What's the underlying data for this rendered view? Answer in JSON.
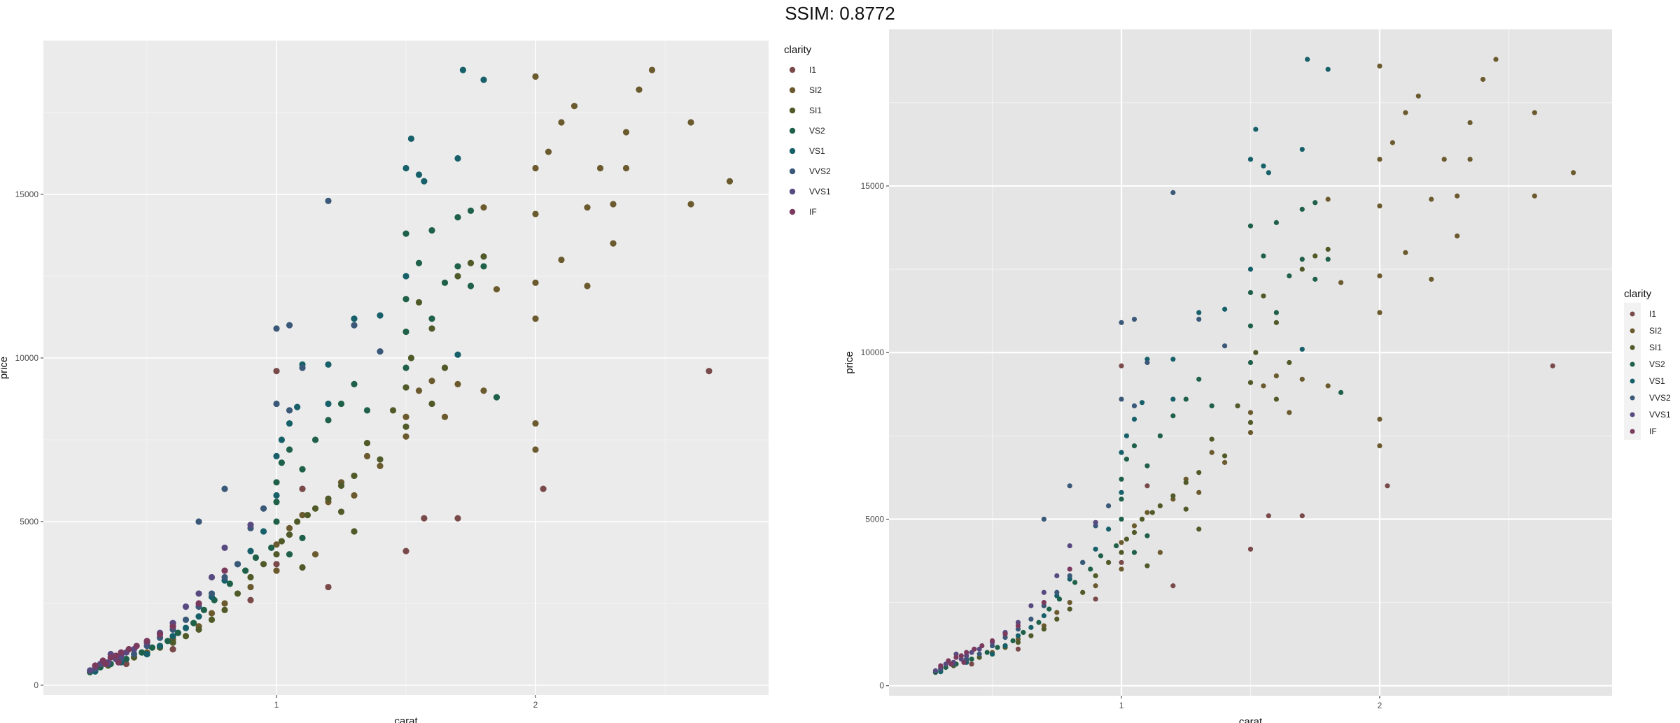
{
  "page_title": "SSIM: 0.8772",
  "palette": {
    "I1": "#7a4a4a",
    "SI2": "#6b5a2e",
    "SI1": "#4f5a28",
    "VS2": "#1f6048",
    "VS1": "#17606a",
    "VVS2": "#3a5878",
    "VVS1": "#584a80",
    "IF": "#7a3a5e"
  },
  "chart_data": [
    {
      "type": "scatter",
      "title": "",
      "xlabel": "carat",
      "ylabel": "price",
      "xlim": [
        0.1,
        2.9
      ],
      "ylim": [
        -300,
        19700
      ],
      "x_ticks": [
        1,
        2
      ],
      "x_tick_labels": [
        "1",
        "2"
      ],
      "y_ticks": [
        0,
        5000,
        10000,
        15000
      ],
      "y_tick_labels": [
        "0",
        "5000",
        "10000",
        "15000"
      ],
      "grid": true,
      "legend": {
        "title": "clarity",
        "placement": "right-top",
        "entries": [
          "I1",
          "SI2",
          "SI1",
          "VS2",
          "VS1",
          "VVS2",
          "VVS1",
          "IF"
        ]
      },
      "series": [
        {
          "name": "I1",
          "points": [
            [
              0.42,
              650
            ],
            [
              0.6,
              1100
            ],
            [
              0.9,
              2600
            ],
            [
              1.0,
              3700
            ],
            [
              1.0,
              9600
            ],
            [
              1.2,
              3000
            ],
            [
              1.5,
              4100
            ],
            [
              1.57,
              5100
            ],
            [
              1.7,
              5100
            ],
            [
              2.03,
              6000
            ],
            [
              2.67,
              9600
            ],
            [
              1.1,
              6000
            ]
          ]
        },
        {
          "name": "SI2",
          "points": [
            [
              0.3,
              500
            ],
            [
              0.35,
              700
            ],
            [
              0.4,
              800
            ],
            [
              0.5,
              1000
            ],
            [
              0.55,
              1200
            ],
            [
              0.6,
              1400
            ],
            [
              0.7,
              1800
            ],
            [
              0.75,
              2200
            ],
            [
              0.8,
              2500
            ],
            [
              0.9,
              3000
            ],
            [
              1.0,
              3500
            ],
            [
              1.0,
              4300
            ],
            [
              1.05,
              4800
            ],
            [
              1.1,
              5200
            ],
            [
              1.15,
              4000
            ],
            [
              1.2,
              5600
            ],
            [
              1.25,
              6200
            ],
            [
              1.3,
              5800
            ],
            [
              1.35,
              7000
            ],
            [
              1.4,
              6700
            ],
            [
              1.5,
              7600
            ],
            [
              1.5,
              8200
            ],
            [
              1.55,
              9000
            ],
            [
              1.6,
              9300
            ],
            [
              1.65,
              8200
            ],
            [
              1.7,
              9200
            ],
            [
              1.8,
              9000
            ],
            [
              1.8,
              14600
            ],
            [
              2.0,
              12300
            ],
            [
              2.0,
              14400
            ],
            [
              2.0,
              15800
            ],
            [
              2.0,
              18600
            ],
            [
              2.05,
              16300
            ],
            [
              2.1,
              13000
            ],
            [
              2.1,
              17200
            ],
            [
              2.15,
              17700
            ],
            [
              2.2,
              14600
            ],
            [
              2.25,
              15800
            ],
            [
              2.3,
              13500
            ],
            [
              2.3,
              14700
            ],
            [
              2.35,
              15800
            ],
            [
              2.35,
              16900
            ],
            [
              2.4,
              18200
            ],
            [
              2.45,
              18800
            ],
            [
              2.6,
              14700
            ],
            [
              2.6,
              17200
            ],
            [
              2.75,
              15400
            ],
            [
              2.0,
              8000
            ],
            [
              2.0,
              7200
            ],
            [
              1.85,
              12100
            ],
            [
              2.2,
              12200
            ],
            [
              2.0,
              11200
            ]
          ]
        },
        {
          "name": "SI1",
          "points": [
            [
              0.3,
              450
            ],
            [
              0.35,
              600
            ],
            [
              0.4,
              750
            ],
            [
              0.45,
              850
            ],
            [
              0.5,
              950
            ],
            [
              0.55,
              1150
            ],
            [
              0.6,
              1300
            ],
            [
              0.65,
              1500
            ],
            [
              0.7,
              1700
            ],
            [
              0.75,
              2000
            ],
            [
              0.8,
              2300
            ],
            [
              0.85,
              2800
            ],
            [
              0.9,
              3300
            ],
            [
              0.95,
              3700
            ],
            [
              1.0,
              4000
            ],
            [
              1.02,
              4400
            ],
            [
              1.05,
              4600
            ],
            [
              1.08,
              5000
            ],
            [
              1.12,
              5200
            ],
            [
              1.15,
              5400
            ],
            [
              1.2,
              5700
            ],
            [
              1.25,
              6100
            ],
            [
              1.3,
              6400
            ],
            [
              1.35,
              7400
            ],
            [
              1.4,
              6900
            ],
            [
              1.45,
              8400
            ],
            [
              1.5,
              9100
            ],
            [
              1.52,
              10000
            ],
            [
              1.55,
              11700
            ],
            [
              1.6,
              10900
            ],
            [
              1.65,
              9700
            ],
            [
              1.7,
              12500
            ],
            [
              1.75,
              12900
            ],
            [
              1.8,
              13100
            ],
            [
              1.1,
              3600
            ],
            [
              1.3,
              4700
            ],
            [
              1.5,
              7900
            ],
            [
              1.6,
              8600
            ],
            [
              1.25,
              5300
            ]
          ]
        },
        {
          "name": "VS2",
          "points": [
            [
              0.28,
              400
            ],
            [
              0.32,
              550
            ],
            [
              0.36,
              650
            ],
            [
              0.42,
              800
            ],
            [
              0.48,
              1000
            ],
            [
              0.52,
              1150
            ],
            [
              0.58,
              1350
            ],
            [
              0.62,
              1600
            ],
            [
              0.68,
              1900
            ],
            [
              0.72,
              2300
            ],
            [
              0.76,
              2600
            ],
            [
              0.82,
              3100
            ],
            [
              0.88,
              3500
            ],
            [
              0.92,
              3900
            ],
            [
              0.98,
              4200
            ],
            [
              1.0,
              5000
            ],
            [
              1.0,
              5600
            ],
            [
              1.0,
              6200
            ],
            [
              1.02,
              6800
            ],
            [
              1.05,
              7200
            ],
            [
              1.1,
              6600
            ],
            [
              1.15,
              7500
            ],
            [
              1.2,
              8100
            ],
            [
              1.25,
              8600
            ],
            [
              1.3,
              9200
            ],
            [
              1.35,
              8400
            ],
            [
              1.5,
              9700
            ],
            [
              1.5,
              10800
            ],
            [
              1.5,
              11800
            ],
            [
              1.55,
              12900
            ],
            [
              1.6,
              11200
            ],
            [
              1.65,
              12300
            ],
            [
              1.7,
              12800
            ],
            [
              1.75,
              12200
            ],
            [
              1.8,
              12800
            ],
            [
              1.5,
              13800
            ],
            [
              1.6,
              13900
            ],
            [
              1.7,
              14300
            ],
            [
              1.75,
              14500
            ],
            [
              1.85,
              8800
            ],
            [
              1.1,
              4500
            ],
            [
              1.05,
              4000
            ]
          ]
        },
        {
          "name": "VS1",
          "points": [
            [
              0.3,
              420
            ],
            [
              0.4,
              700
            ],
            [
              0.5,
              950
            ],
            [
              0.55,
              1200
            ],
            [
              0.6,
              1500
            ],
            [
              0.65,
              1750
            ],
            [
              0.7,
              2100
            ],
            [
              0.75,
              2700
            ],
            [
              0.8,
              3200
            ],
            [
              0.85,
              3700
            ],
            [
              0.9,
              4100
            ],
            [
              0.95,
              4700
            ],
            [
              1.0,
              5800
            ],
            [
              1.0,
              7000
            ],
            [
              1.02,
              7500
            ],
            [
              1.05,
              8000
            ],
            [
              1.08,
              8500
            ],
            [
              1.1,
              9800
            ],
            [
              1.2,
              9800
            ],
            [
              1.3,
              11200
            ],
            [
              1.4,
              11300
            ],
            [
              1.5,
              15800
            ],
            [
              1.52,
              16700
            ],
            [
              1.55,
              15600
            ],
            [
              1.57,
              15400
            ],
            [
              1.7,
              16100
            ],
            [
              1.72,
              18800
            ],
            [
              1.8,
              18500
            ],
            [
              1.5,
              12500
            ],
            [
              1.7,
              10100
            ],
            [
              1.2,
              8600
            ]
          ]
        },
        {
          "name": "VVS2",
          "points": [
            [
              0.3,
              500
            ],
            [
              0.35,
              650
            ],
            [
              0.4,
              800
            ],
            [
              0.45,
              950
            ],
            [
              0.5,
              1200
            ],
            [
              0.55,
              1450
            ],
            [
              0.6,
              1700
            ],
            [
              0.65,
              2000
            ],
            [
              0.7,
              2400
            ],
            [
              0.75,
              2800
            ],
            [
              0.8,
              3300
            ],
            [
              0.85,
              3700
            ],
            [
              0.9,
              4800
            ],
            [
              0.95,
              5400
            ],
            [
              1.0,
              8600
            ],
            [
              1.0,
              10900
            ],
            [
              1.05,
              11000
            ],
            [
              1.05,
              8400
            ],
            [
              1.1,
              9700
            ],
            [
              1.2,
              14800
            ],
            [
              1.3,
              11000
            ],
            [
              1.4,
              10200
            ],
            [
              0.7,
              5000
            ],
            [
              0.8,
              6000
            ]
          ]
        },
        {
          "name": "VVS1",
          "points": [
            [
              0.3,
              550
            ],
            [
              0.32,
              650
            ],
            [
              0.35,
              700
            ],
            [
              0.38,
              800
            ],
            [
              0.4,
              900
            ],
            [
              0.42,
              1000
            ],
            [
              0.45,
              1100
            ],
            [
              0.5,
              1300
            ],
            [
              0.55,
              1600
            ],
            [
              0.6,
              1900
            ],
            [
              0.65,
              2400
            ],
            [
              0.7,
              2800
            ],
            [
              0.75,
              3300
            ],
            [
              0.8,
              4200
            ],
            [
              0.9,
              4900
            ],
            [
              0.28,
              450
            ],
            [
              0.36,
              950
            ]
          ]
        },
        {
          "name": "IF",
          "points": [
            [
              0.3,
              600
            ],
            [
              0.33,
              750
            ],
            [
              0.36,
              850
            ],
            [
              0.38,
              900
            ],
            [
              0.4,
              1000
            ],
            [
              0.43,
              1100
            ],
            [
              0.46,
              1200
            ],
            [
              0.5,
              1350
            ],
            [
              0.55,
              1550
            ],
            [
              0.6,
              1800
            ],
            [
              0.7,
              2500
            ],
            [
              0.8,
              3500
            ],
            [
              0.34,
              650
            ],
            [
              0.39,
              700
            ]
          ]
        }
      ]
    },
    {
      "type": "scatter",
      "title": "",
      "xlabel": "carat",
      "ylabel": "price",
      "xlim": [
        0.1,
        2.9
      ],
      "ylim": [
        -300,
        19700
      ],
      "x_ticks": [
        1,
        2
      ],
      "x_tick_labels": [
        "1",
        "2"
      ],
      "y_ticks": [
        0,
        5000,
        10000,
        15000
      ],
      "y_tick_labels": [
        "0",
        "5000",
        "10000",
        "15000"
      ],
      "grid": true,
      "legend": {
        "title": "clarity",
        "placement": "right-middle",
        "entries": [
          "I1",
          "SI2",
          "SI1",
          "VS2",
          "VS1",
          "VVS2",
          "VVS1",
          "IF"
        ]
      },
      "series_ref": "same as first chart"
    }
  ]
}
